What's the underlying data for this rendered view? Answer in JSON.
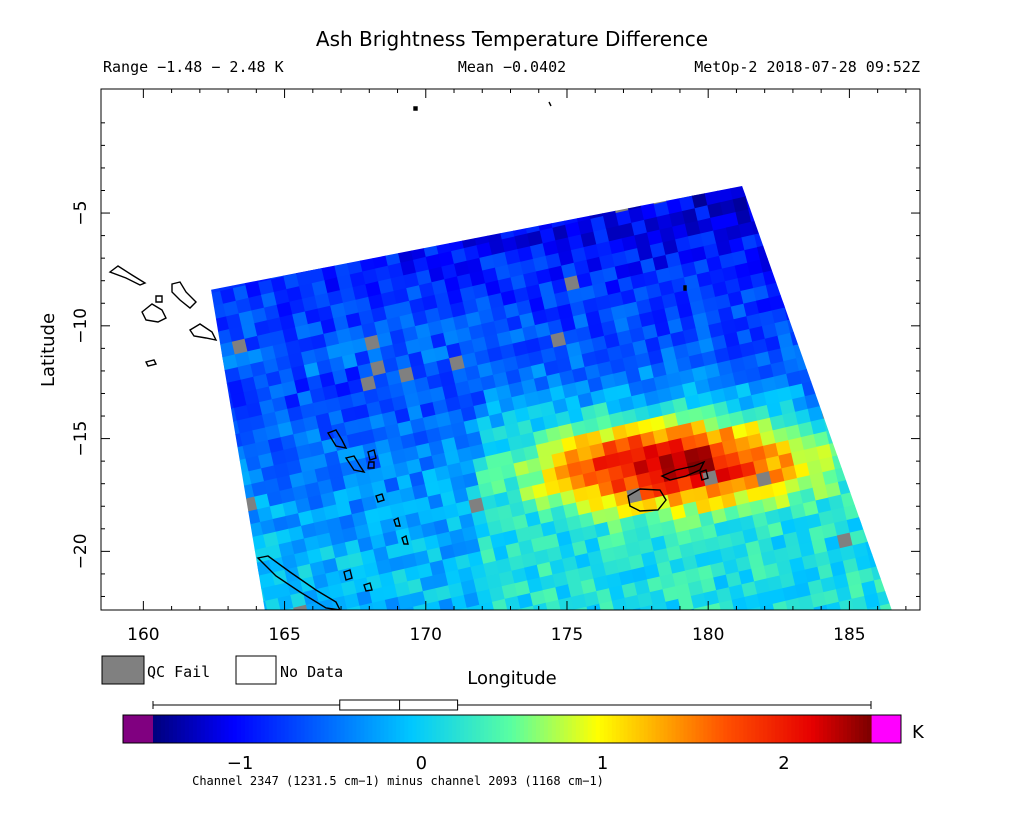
{
  "chart_data": {
    "type": "heatmap",
    "title": "Ash Brightness Temperature Difference",
    "range_text": "Range −1.48 − 2.48 K",
    "mean_text": "Mean −0.0402",
    "satellite_text": "MetOp-2 2018-07-28 09:52Z",
    "xlabel": "Longitude",
    "ylabel": "Latitude",
    "xlim": [
      158.5,
      187.5
    ],
    "ylim": [
      -22.6,
      0.5
    ],
    "x_ticks": [
      160,
      165,
      170,
      175,
      180,
      185
    ],
    "y_ticks": [
      -5,
      -10,
      -15,
      -20
    ],
    "x_tick_labels": [
      "160",
      "165",
      "170",
      "175",
      "180",
      "185"
    ],
    "y_tick_labels": [
      "−5",
      "−10",
      "−15",
      "−20"
    ],
    "swath_corners": {
      "top_left": [
        162.4,
        -8.4
      ],
      "top_right": [
        181.2,
        -3.8
      ],
      "bottom_right": [
        186.5,
        -22.6
      ],
      "bottom_left": [
        164.3,
        -22.6
      ]
    },
    "ash_plume_center": [
      179.5,
      -16.0
    ],
    "ash_plume_peak_value": 2.3,
    "legend": {
      "qc_fail_label": "QC Fail",
      "no_data_label": "No Data",
      "qc_fail_color": "#808080"
    },
    "colorbar": {
      "unit": "K",
      "min": -1.48,
      "max": 2.48,
      "tick_values": [
        -1,
        0,
        1,
        2
      ],
      "tick_labels": [
        "−1",
        "0",
        "1",
        "2"
      ],
      "under_color": "#800080",
      "over_color": "#ff00ff",
      "boxplot": {
        "min": -1.48,
        "q1": -0.45,
        "median": -0.12,
        "q3": 0.2,
        "max": 2.48
      },
      "caption": "Channel 2347 (1231.5 cm−1) minus channel 2093 (1168 cm−1)"
    }
  }
}
